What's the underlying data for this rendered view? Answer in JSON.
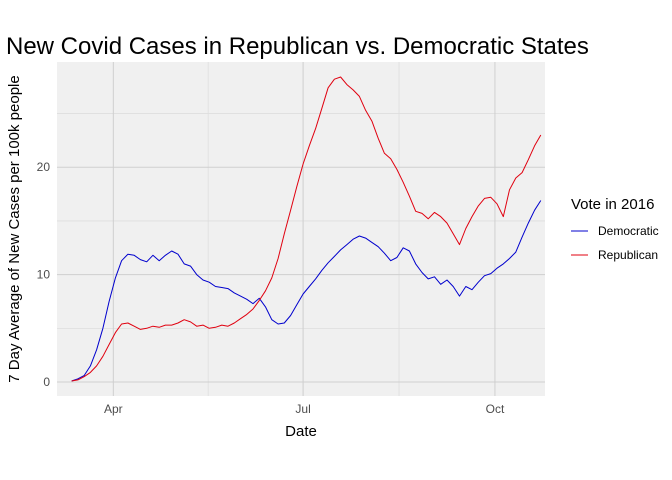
{
  "chart_data": {
    "type": "line",
    "title": "New Covid Cases in Republican vs. Democratic States",
    "xlabel": "Date",
    "ylabel": "7 Day Average of New Cases per 100k people",
    "x_ticks": [
      "Apr",
      "Jul",
      "Oct"
    ],
    "x_tick_dates": [
      "2020-04-01",
      "2020-07-01",
      "2020-10-01"
    ],
    "xlim": [
      "2020-03-05",
      "2020-10-25"
    ],
    "y_ticks": [
      0,
      10,
      20
    ],
    "ylim": [
      -1.3,
      29.8
    ],
    "grid": true,
    "legend": {
      "title": "Vote in 2016",
      "position": "right"
    },
    "series": [
      {
        "name": "Democratic",
        "color": "#0000cd",
        "points": [
          [
            "2020-03-12",
            0.1
          ],
          [
            "2020-03-15",
            0.3
          ],
          [
            "2020-03-18",
            0.6
          ],
          [
            "2020-03-21",
            1.5
          ],
          [
            "2020-03-24",
            3.0
          ],
          [
            "2020-03-27",
            5.0
          ],
          [
            "2020-03-30",
            7.5
          ],
          [
            "2020-04-02",
            9.7
          ],
          [
            "2020-04-05",
            11.3
          ],
          [
            "2020-04-08",
            11.9
          ],
          [
            "2020-04-11",
            11.8
          ],
          [
            "2020-04-14",
            11.4
          ],
          [
            "2020-04-17",
            11.2
          ],
          [
            "2020-04-20",
            11.8
          ],
          [
            "2020-04-23",
            11.3
          ],
          [
            "2020-04-26",
            11.8
          ],
          [
            "2020-04-29",
            12.2
          ],
          [
            "2020-05-02",
            11.9
          ],
          [
            "2020-05-05",
            11.0
          ],
          [
            "2020-05-08",
            10.8
          ],
          [
            "2020-05-11",
            10.0
          ],
          [
            "2020-05-14",
            9.5
          ],
          [
            "2020-05-17",
            9.3
          ],
          [
            "2020-05-20",
            8.9
          ],
          [
            "2020-05-23",
            8.8
          ],
          [
            "2020-05-26",
            8.7
          ],
          [
            "2020-05-29",
            8.3
          ],
          [
            "2020-06-01",
            8.0
          ],
          [
            "2020-06-04",
            7.7
          ],
          [
            "2020-06-07",
            7.3
          ],
          [
            "2020-06-10",
            7.8
          ],
          [
            "2020-06-13",
            7.0
          ],
          [
            "2020-06-16",
            5.8
          ],
          [
            "2020-06-19",
            5.4
          ],
          [
            "2020-06-22",
            5.5
          ],
          [
            "2020-06-25",
            6.2
          ],
          [
            "2020-06-28",
            7.2
          ],
          [
            "2020-07-01",
            8.2
          ],
          [
            "2020-07-04",
            8.9
          ],
          [
            "2020-07-07",
            9.6
          ],
          [
            "2020-07-10",
            10.4
          ],
          [
            "2020-07-13",
            11.1
          ],
          [
            "2020-07-16",
            11.7
          ],
          [
            "2020-07-19",
            12.3
          ],
          [
            "2020-07-22",
            12.8
          ],
          [
            "2020-07-25",
            13.3
          ],
          [
            "2020-07-28",
            13.6
          ],
          [
            "2020-07-31",
            13.4
          ],
          [
            "2020-08-03",
            13.0
          ],
          [
            "2020-08-06",
            12.6
          ],
          [
            "2020-08-09",
            12.0
          ],
          [
            "2020-08-12",
            11.3
          ],
          [
            "2020-08-15",
            11.6
          ],
          [
            "2020-08-18",
            12.5
          ],
          [
            "2020-08-21",
            12.2
          ],
          [
            "2020-08-24",
            11.0
          ],
          [
            "2020-08-27",
            10.2
          ],
          [
            "2020-08-30",
            9.6
          ],
          [
            "2020-09-02",
            9.8
          ],
          [
            "2020-09-05",
            9.1
          ],
          [
            "2020-09-08",
            9.5
          ],
          [
            "2020-09-11",
            8.9
          ],
          [
            "2020-09-14",
            8.0
          ],
          [
            "2020-09-17",
            8.9
          ],
          [
            "2020-09-20",
            8.6
          ],
          [
            "2020-09-23",
            9.3
          ],
          [
            "2020-09-26",
            9.9
          ],
          [
            "2020-09-29",
            10.1
          ],
          [
            "2020-10-02",
            10.6
          ],
          [
            "2020-10-05",
            11.0
          ],
          [
            "2020-10-08",
            11.5
          ],
          [
            "2020-10-11",
            12.1
          ],
          [
            "2020-10-14",
            13.5
          ],
          [
            "2020-10-17",
            14.8
          ],
          [
            "2020-10-20",
            16.0
          ],
          [
            "2020-10-23",
            16.9
          ]
        ]
      },
      {
        "name": "Republican",
        "color": "#e0000f",
        "points": [
          [
            "2020-03-12",
            0.1
          ],
          [
            "2020-03-15",
            0.2
          ],
          [
            "2020-03-18",
            0.5
          ],
          [
            "2020-03-21",
            0.9
          ],
          [
            "2020-03-24",
            1.5
          ],
          [
            "2020-03-27",
            2.4
          ],
          [
            "2020-03-30",
            3.5
          ],
          [
            "2020-04-02",
            4.6
          ],
          [
            "2020-04-05",
            5.4
          ],
          [
            "2020-04-08",
            5.5
          ],
          [
            "2020-04-11",
            5.2
          ],
          [
            "2020-04-14",
            4.9
          ],
          [
            "2020-04-17",
            5.0
          ],
          [
            "2020-04-20",
            5.2
          ],
          [
            "2020-04-23",
            5.1
          ],
          [
            "2020-04-26",
            5.3
          ],
          [
            "2020-04-29",
            5.3
          ],
          [
            "2020-05-02",
            5.5
          ],
          [
            "2020-05-05",
            5.8
          ],
          [
            "2020-05-08",
            5.6
          ],
          [
            "2020-05-11",
            5.2
          ],
          [
            "2020-05-14",
            5.3
          ],
          [
            "2020-05-17",
            5.0
          ],
          [
            "2020-05-20",
            5.1
          ],
          [
            "2020-05-23",
            5.3
          ],
          [
            "2020-05-26",
            5.2
          ],
          [
            "2020-05-29",
            5.5
          ],
          [
            "2020-06-01",
            5.9
          ],
          [
            "2020-06-04",
            6.3
          ],
          [
            "2020-06-07",
            6.8
          ],
          [
            "2020-06-10",
            7.6
          ],
          [
            "2020-06-13",
            8.5
          ],
          [
            "2020-06-16",
            9.7
          ],
          [
            "2020-06-19",
            11.5
          ],
          [
            "2020-06-22",
            13.8
          ],
          [
            "2020-06-25",
            16.0
          ],
          [
            "2020-06-28",
            18.2
          ],
          [
            "2020-07-01",
            20.3
          ],
          [
            "2020-07-04",
            22.0
          ],
          [
            "2020-07-07",
            23.6
          ],
          [
            "2020-07-10",
            25.5
          ],
          [
            "2020-07-13",
            27.4
          ],
          [
            "2020-07-16",
            28.2
          ],
          [
            "2020-07-19",
            28.4
          ],
          [
            "2020-07-22",
            27.7
          ],
          [
            "2020-07-25",
            27.2
          ],
          [
            "2020-07-28",
            26.6
          ],
          [
            "2020-07-31",
            25.3
          ],
          [
            "2020-08-03",
            24.3
          ],
          [
            "2020-08-06",
            22.7
          ],
          [
            "2020-08-09",
            21.3
          ],
          [
            "2020-08-12",
            20.8
          ],
          [
            "2020-08-15",
            19.8
          ],
          [
            "2020-08-18",
            18.6
          ],
          [
            "2020-08-21",
            17.3
          ],
          [
            "2020-08-24",
            15.9
          ],
          [
            "2020-08-27",
            15.7
          ],
          [
            "2020-08-30",
            15.2
          ],
          [
            "2020-09-02",
            15.8
          ],
          [
            "2020-09-05",
            15.4
          ],
          [
            "2020-09-08",
            14.8
          ],
          [
            "2020-09-11",
            13.8
          ],
          [
            "2020-09-14",
            12.8
          ],
          [
            "2020-09-17",
            14.3
          ],
          [
            "2020-09-20",
            15.4
          ],
          [
            "2020-09-23",
            16.4
          ],
          [
            "2020-09-26",
            17.1
          ],
          [
            "2020-09-29",
            17.2
          ],
          [
            "2020-10-02",
            16.6
          ],
          [
            "2020-10-05",
            15.4
          ],
          [
            "2020-10-08",
            17.9
          ],
          [
            "2020-10-11",
            19.0
          ],
          [
            "2020-10-14",
            19.5
          ],
          [
            "2020-10-17",
            20.7
          ],
          [
            "2020-10-20",
            22.0
          ],
          [
            "2020-10-23",
            23.0
          ]
        ]
      }
    ]
  }
}
